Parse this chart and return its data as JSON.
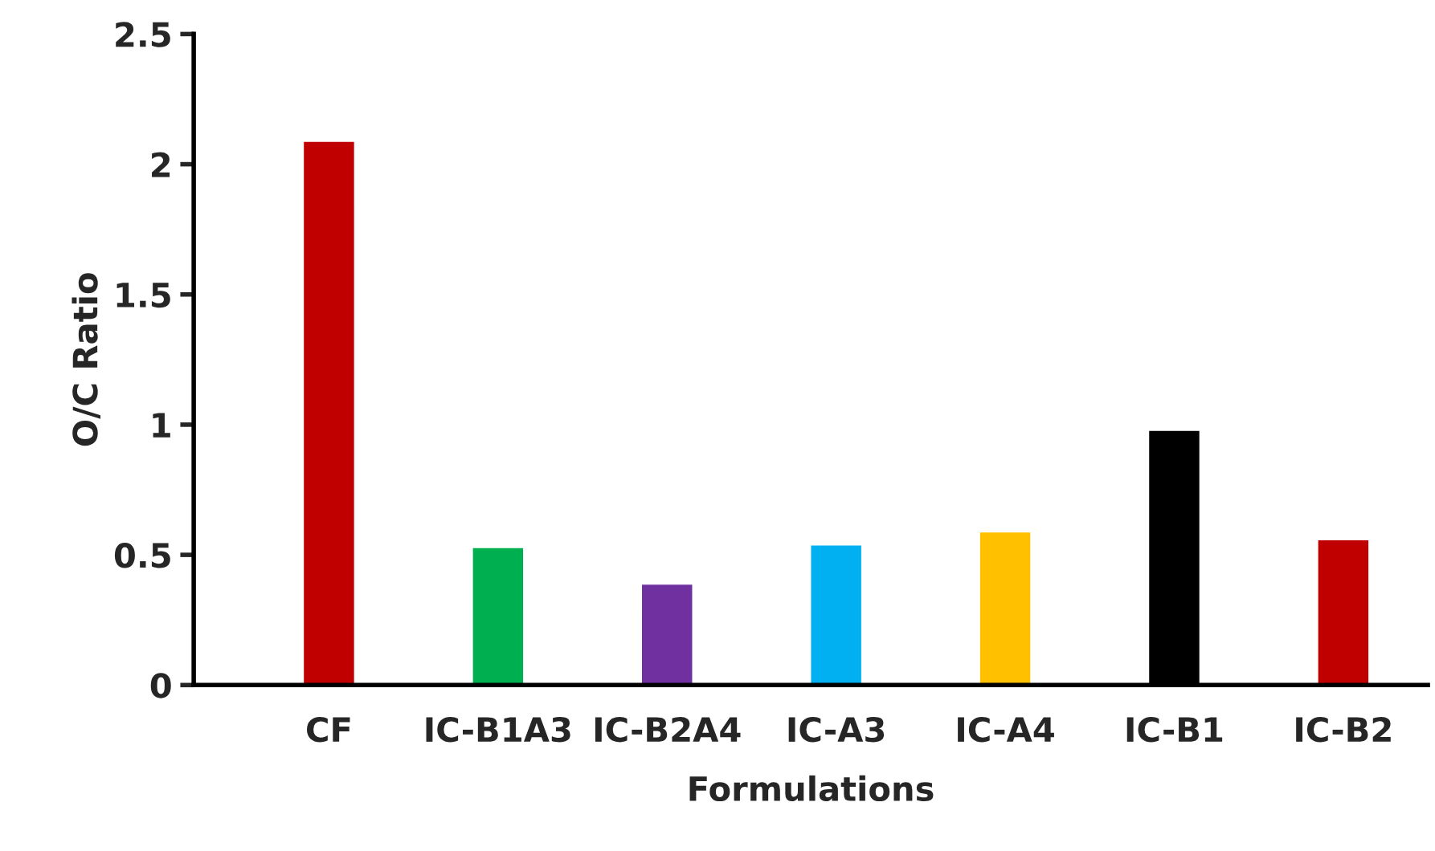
{
  "chart_data": {
    "type": "bar",
    "xlabel": "Formulations",
    "ylabel": "O/C Ratio",
    "categories": [
      "CF",
      "IC-B1A3",
      "IC-B2A4",
      "IC-A3",
      "IC-A4",
      "IC-B1",
      "IC-B2"
    ],
    "values": [
      2.09,
      0.53,
      0.39,
      0.54,
      0.59,
      0.98,
      0.56
    ],
    "colors": [
      "#c00000",
      "#00b050",
      "#7030a0",
      "#00b0f0",
      "#ffc000",
      "#000000",
      "#c00000"
    ],
    "ylim": [
      0,
      2.5
    ],
    "yticks": [
      0,
      0.5,
      1,
      1.5,
      2,
      2.5
    ],
    "grid": false,
    "legend": false
  }
}
